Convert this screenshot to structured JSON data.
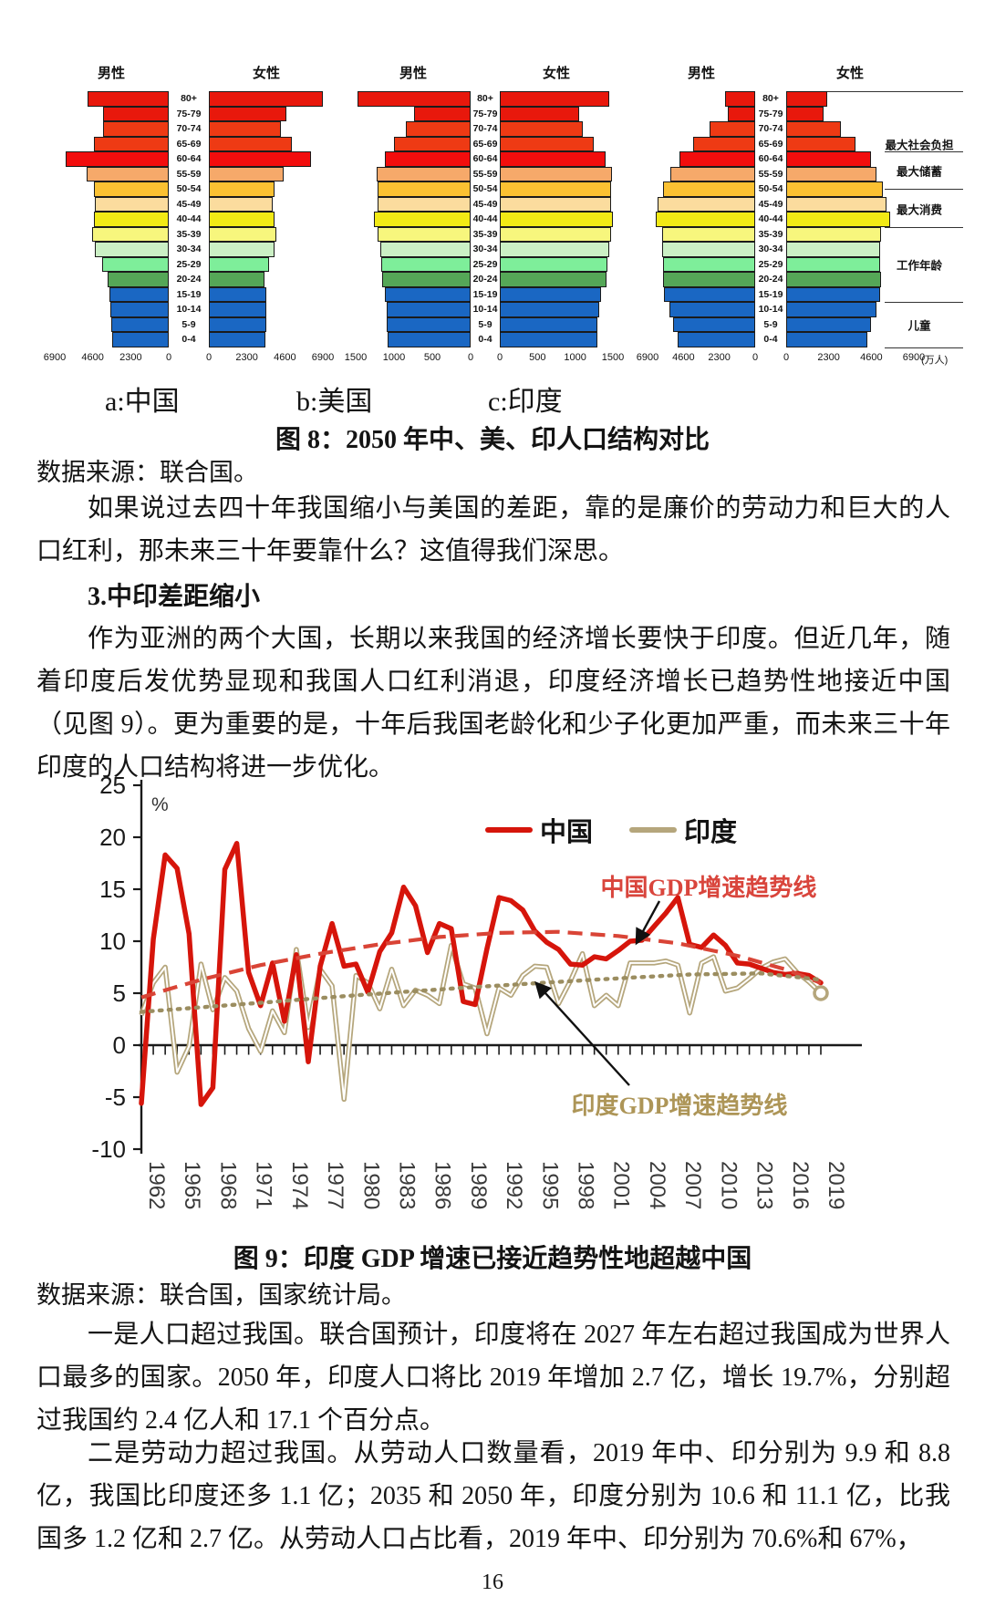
{
  "page_number": "16",
  "figure8": {
    "male_label": "男性",
    "female_label": "女性",
    "age_groups": [
      "80+",
      "75-79",
      "70-74",
      "65-69",
      "60-64",
      "55-59",
      "50-54",
      "45-49",
      "40-44",
      "35-39",
      "30-34",
      "25-29",
      "20-24",
      "15-19",
      "10-14",
      "5-9",
      "0-4"
    ],
    "colors": [
      "#e8180c",
      "#e8180c",
      "#ee3a14",
      "#ee3a14",
      "#f20d0d",
      "#f6a96a",
      "#fbc132",
      "#fbdc9e",
      "#f2ea15",
      "#f7f67d",
      "#cbf0c5",
      "#7eee9a",
      "#55a757",
      "#1a67c3",
      "#1a67c3",
      "#1a67c3",
      "#1a67c3"
    ],
    "caption": "图 8：2050 年中、美、印人口结构对比",
    "source": "数据来源：联合国。"
  },
  "body": {
    "para1": "如果说过去四十年我国缩小与美国的差距，靠的是廉价的劳动力和巨大的人口红利，那未来三十年要靠什么？这值得我们深思。",
    "heading": "3.中印差距缩小",
    "para2": "作为亚洲的两个大国，长期以来我国的经济增长要快于印度。但近几年，随着印度后发优势显现和我国人口红利消退，印度经济增长已趋势性地接近中国（见图 9）。更为重要的是，十年后我国老龄化和少子化更加严重，而未来三十年印度的人口结构将进一步优化。",
    "para3": "一是人口超过我国。联合国预计，印度将在 2027 年左右超过我国成为世界人口最多的国家。2050 年，印度人口将比 2019 年增加 2.7 亿，增长 19.7%，分别超过我国约 2.4 亿人和 17.1 个百分点。",
    "para4": "二是劳动力超过我国。从劳动人口数量看，2019 年中、印分别为 9.9 和 8.8 亿，我国比印度还多 1.1 亿；2035 和 2050 年，印度分别为 10.6 和 11.1 亿，比我国多 1.2 亿和 2.7 亿。从劳动人口占比看，2019 年中、印分别为 70.6%和 67%，"
  },
  "figure9": {
    "caption": "图 9：印度 GDP 增速已接近趋势性地超越中国",
    "source": "数据来源：联合国，国家统计局。",
    "ylabel": "%",
    "legend": [
      {
        "label": "中国",
        "color": "#d6150b"
      },
      {
        "label": "印度",
        "color": "#b5a67c"
      }
    ],
    "annotation_china": "中国GDP增速趋势线",
    "annotation_india": "印度GDP增速趋势线",
    "yticks": [
      25,
      20,
      15,
      10,
      5,
      0,
      -5,
      -10
    ],
    "xtick_step": 3
  },
  "chart_data": [
    {
      "type": "bar",
      "subtype": "population_pyramid",
      "title": "a:中国",
      "axis_max": 6900,
      "axis_ticks": [
        6900,
        4600,
        2300,
        0
      ],
      "unit": "",
      "male": [
        4900,
        3950,
        4000,
        4500,
        6250,
        4950,
        4500,
        4450,
        4500,
        4650,
        4450,
        4050,
        3700,
        3580,
        3530,
        3470,
        3420
      ],
      "female": [
        7000,
        4700,
        4350,
        5050,
        6200,
        4550,
        4000,
        3850,
        3950,
        4100,
        4000,
        3650,
        3350,
        3450,
        3500,
        3450,
        3400
      ]
    },
    {
      "type": "bar",
      "subtype": "population_pyramid",
      "title": "b:美国",
      "axis_max": 1500,
      "axis_ticks": [
        1500,
        1000,
        500,
        0
      ],
      "unit": "",
      "male": [
        1480,
        740,
        850,
        1000,
        1120,
        1230,
        1210,
        1210,
        1260,
        1210,
        1180,
        1170,
        1160,
        1120,
        1100,
        1090,
        1080
      ],
      "female": [
        1450,
        1050,
        1100,
        1250,
        1400,
        1490,
        1470,
        1480,
        1500,
        1480,
        1450,
        1430,
        1410,
        1340,
        1320,
        1300,
        1290
      ]
    },
    {
      "type": "bar",
      "subtype": "population_pyramid",
      "title": "c:印度",
      "axis_max": 6900,
      "axis_ticks": [
        6900,
        4600,
        2300,
        0
      ],
      "unit": "(万人)",
      "male": [
        1930,
        1750,
        2940,
        3950,
        4870,
        5420,
        5890,
        6250,
        6350,
        5980,
        5980,
        5920,
        5890,
        5850,
        5520,
        5240,
        4970
      ],
      "female": [
        2200,
        2020,
        2940,
        3770,
        4600,
        4870,
        5240,
        5420,
        5610,
        5150,
        5060,
        5100,
        5150,
        5060,
        4870,
        4600,
        4400
      ],
      "annotations": [
        {
          "text": "最大社会负担",
          "center_row": 3.5
        },
        {
          "text": "最大储蓄",
          "center_row": 5.3
        },
        {
          "text": "最大消费",
          "center_row": 7.8
        },
        {
          "text": "工作年龄",
          "center_row": 11.5
        },
        {
          "text": "儿童",
          "center_row": 15.5
        }
      ],
      "separator_rows": [
        0,
        4,
        6.5,
        9,
        14,
        17
      ]
    },
    {
      "type": "line",
      "title": "图 9：印度 GDP 增速已接近趋势性地超越中国",
      "ylabel": "%",
      "ylim": [
        -10,
        25
      ],
      "x_start": 1962,
      "x_end": 2019,
      "series": [
        {
          "name": "中国",
          "color": "#d6150b",
          "style": "solid",
          "values": [
            -5.6,
            10.2,
            18.3,
            17.0,
            10.7,
            -5.7,
            -4.1,
            16.9,
            19.4,
            7.0,
            3.8,
            7.9,
            2.3,
            8.7,
            -1.6,
            7.6,
            11.7,
            7.6,
            7.8,
            5.1,
            9.0,
            10.8,
            15.2,
            13.4,
            8.9,
            11.7,
            11.2,
            4.2,
            3.9,
            9.3,
            14.2,
            13.9,
            13.0,
            11.0,
            9.9,
            9.2,
            7.8,
            7.7,
            8.5,
            8.3,
            9.1,
            10.0,
            10.1,
            11.4,
            12.7,
            14.2,
            9.7,
            9.4,
            10.6,
            9.6,
            7.9,
            7.8,
            7.4,
            7.0,
            6.8,
            6.9,
            6.7,
            6.0
          ]
        },
        {
          "name": "印度",
          "color": "#b5a67c",
          "style": "double",
          "values": [
            2.9,
            6.0,
            7.5,
            -2.6,
            -0.1,
            7.8,
            3.4,
            6.5,
            5.2,
            1.6,
            -0.6,
            3.3,
            1.2,
            9.2,
            1.7,
            7.3,
            5.7,
            -5.2,
            6.7,
            6.0,
            3.5,
            7.3,
            3.8,
            5.3,
            4.8,
            4.0,
            9.6,
            5.9,
            5.5,
            1.1,
            5.5,
            4.8,
            6.7,
            7.6,
            7.5,
            4.0,
            6.2,
            8.8,
            3.8,
            4.8,
            3.8,
            7.9,
            7.9,
            7.9,
            8.1,
            7.7,
            3.1,
            7.9,
            8.5,
            5.2,
            5.5,
            6.4,
            7.4,
            8.0,
            8.3,
            7.0,
            6.1,
            5.0
          ]
        },
        {
          "name": "中国GDP增速趋势线",
          "color": "#d94436",
          "style": "dashed",
          "points": {
            "x": [
              1962,
              1967,
              1972,
              1977,
              1982,
              1987,
              1992,
              1997,
              2002,
              2007,
              2012,
              2016,
              2019
            ],
            "values": [
              4.6,
              6.3,
              7.7,
              8.8,
              9.7,
              10.4,
              10.8,
              10.9,
              10.5,
              9.8,
              8.6,
              7.3,
              6.0
            ]
          }
        },
        {
          "name": "印度GDP增速趋势线",
          "color": "#9b8d60",
          "style": "dotted",
          "points": {
            "x": [
              1962,
              1970,
              1980,
              1990,
              2000,
              2008,
              2014,
              2019
            ],
            "values": [
              3.2,
              3.9,
              4.8,
              5.6,
              6.3,
              6.8,
              6.9,
              6.3
            ]
          }
        }
      ]
    }
  ]
}
